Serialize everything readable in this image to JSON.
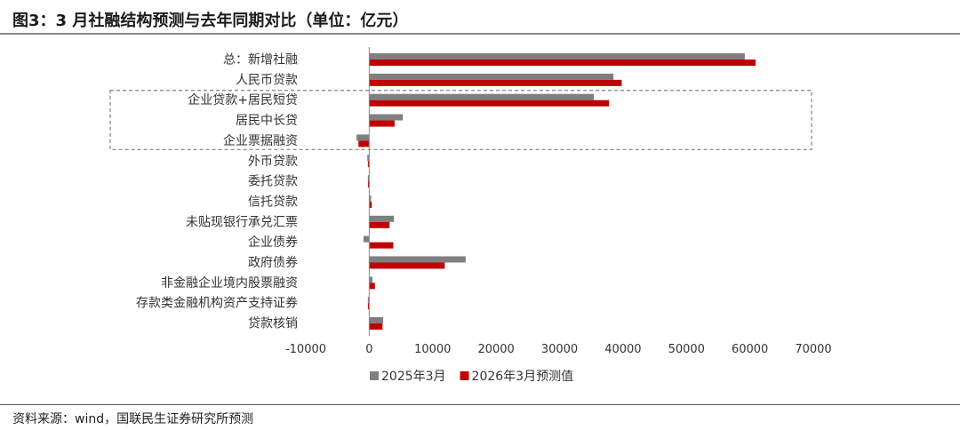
{
  "title": "图3：3 月社融结构预测与去年同期对比（单位：亿元）",
  "source": "资料来源：wind，国联民生证券研究所预测",
  "colors": {
    "s2025": "#7f7f7f",
    "s2026": "#c00000",
    "box": "#808080"
  },
  "chart_data": {
    "type": "bar",
    "orientation": "horizontal",
    "categories": [
      "总：新增社融",
      "人民币贷款",
      "企业贷款+居民短贷",
      "居民中长贷",
      "企业票据融资",
      "外币贷款",
      "委托贷款",
      "信托贷款",
      "未贴现银行承兑汇票",
      "企业债券",
      "政府债券",
      "非金融企业境内股票融资",
      "存款类金融机构资产支持证券",
      "贷款核销"
    ],
    "series": [
      {
        "name": "2025年3月",
        "values": [
          59200,
          38500,
          35400,
          5300,
          -2000,
          -300,
          -50,
          300,
          3900,
          -900,
          15200,
          500,
          -100,
          2200
        ]
      },
      {
        "name": "2026年3月预测值",
        "values": [
          60900,
          39800,
          37800,
          4000,
          -1700,
          -200,
          -50,
          400,
          3200,
          3800,
          11900,
          900,
          -100,
          2100
        ]
      }
    ],
    "xlim": [
      -10000,
      70000
    ],
    "xticks": [
      -10000,
      0,
      10000,
      20000,
      30000,
      40000,
      50000,
      60000,
      70000
    ],
    "highlight": {
      "from_category": "企业贷款+居民短贷",
      "to_category": "企业票据融资",
      "style": "dashed box"
    },
    "legend": "bottom",
    "grid": false
  }
}
